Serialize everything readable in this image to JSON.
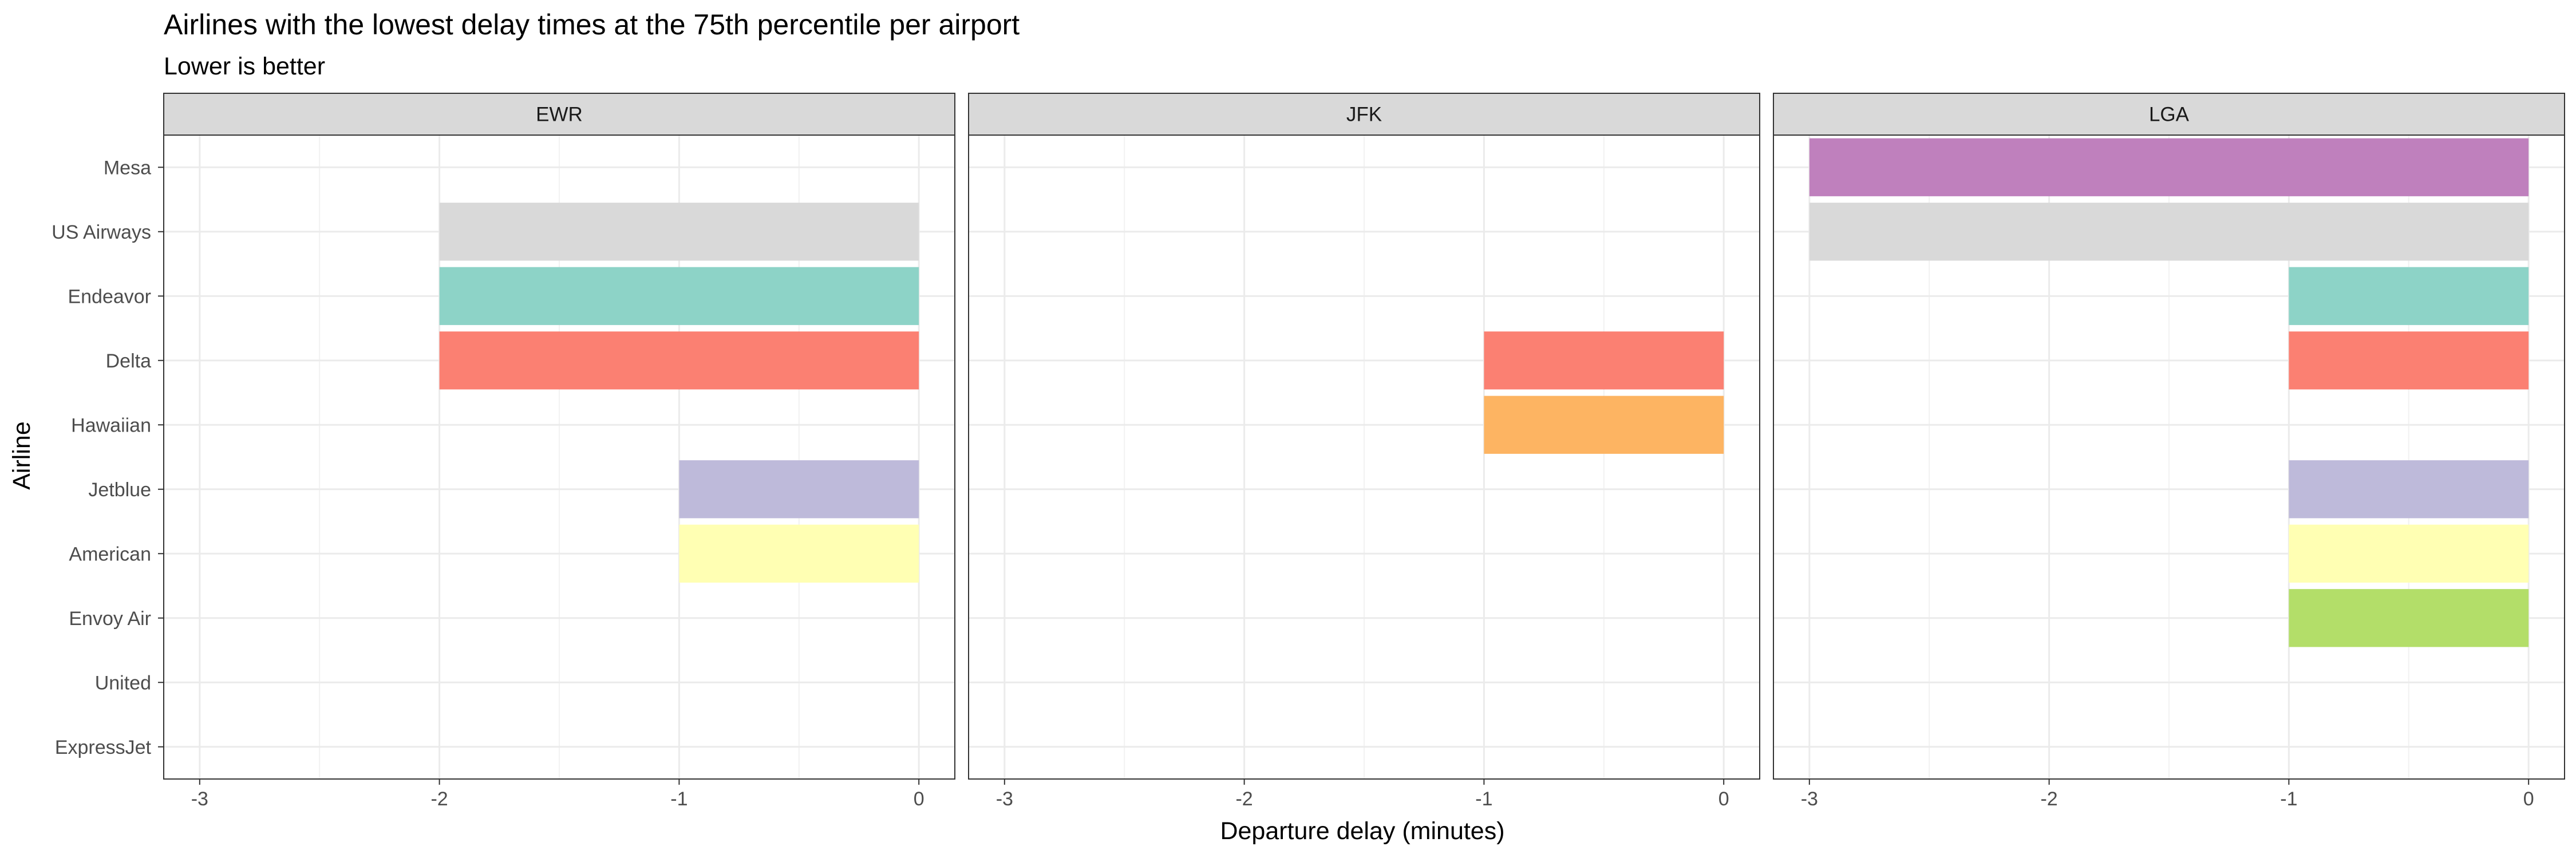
{
  "chart_data": {
    "type": "bar",
    "orientation": "horizontal",
    "faceted": true,
    "title": "Airlines with the lowest delay times at the 75th percentile per airport",
    "subtitle": "Lower is better",
    "xlabel": "Departure delay (minutes)",
    "ylabel": "Airline",
    "xlim": [
      -3.15,
      0.15
    ],
    "xticks": [
      -3,
      -2,
      -1,
      0
    ],
    "xtick_labels": [
      "-3",
      "-2",
      "-1",
      "0"
    ],
    "categories": [
      "Mesa",
      "US Airways",
      "Endeavor",
      "Delta",
      "Hawaiian",
      "Jetblue",
      "American",
      "Envoy Air",
      "United",
      "ExpressJet"
    ],
    "grid": true,
    "legend": "none",
    "colors": {
      "Mesa": "#bf80bd",
      "US Airways": "#d9d9d9",
      "Endeavor": "#8dd3c7",
      "Delta": "#fb8072",
      "Hawaiian": "#fdb462",
      "Jetblue": "#bebada",
      "American": "#ffffb3",
      "Envoy Air": "#b3de69"
    },
    "panels": [
      {
        "facet": "EWR",
        "bars": [
          {
            "airline": "US Airways",
            "value": -2
          },
          {
            "airline": "Endeavor",
            "value": -2
          },
          {
            "airline": "Delta",
            "value": -2
          },
          {
            "airline": "Jetblue",
            "value": -1
          },
          {
            "airline": "American",
            "value": -1
          }
        ]
      },
      {
        "facet": "JFK",
        "bars": [
          {
            "airline": "Delta",
            "value": -1
          },
          {
            "airline": "Hawaiian",
            "value": -1
          }
        ]
      },
      {
        "facet": "LGA",
        "bars": [
          {
            "airline": "Mesa",
            "value": -3
          },
          {
            "airline": "US Airways",
            "value": -3
          },
          {
            "airline": "Endeavor",
            "value": -1
          },
          {
            "airline": "Delta",
            "value": -1
          },
          {
            "airline": "Jetblue",
            "value": -1
          },
          {
            "airline": "American",
            "value": -1
          },
          {
            "airline": "Envoy Air",
            "value": -1
          }
        ]
      }
    ]
  }
}
